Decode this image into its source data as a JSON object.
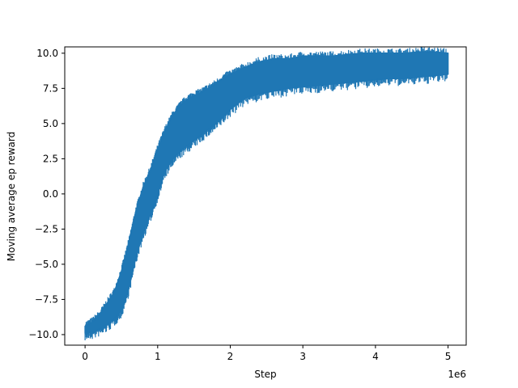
{
  "chart_data": {
    "type": "area",
    "xlabel": "Step",
    "ylabel": "Moving average ep reward",
    "x_offset_label": "1e6",
    "xlim": [
      -280000,
      5250000
    ],
    "ylim": [
      -10.75,
      10.45
    ],
    "x_ticks": [
      0,
      1000000,
      2000000,
      3000000,
      4000000,
      5000000
    ],
    "x_tick_labels": [
      "0",
      "1",
      "2",
      "3",
      "4",
      "5"
    ],
    "y_ticks": [
      -10.0,
      -7.5,
      -5.0,
      -2.5,
      0.0,
      2.5,
      5.0,
      7.5,
      10.0
    ],
    "y_tick_labels": [
      "−10.0",
      "−7.5",
      "−5.0",
      "−2.5",
      "0.0",
      "2.5",
      "5.0",
      "7.5",
      "10.0"
    ],
    "grid": false,
    "series": [
      {
        "color": "#1f77b4",
        "x": [
          0,
          100000,
          200000,
          300000,
          400000,
          500000,
          600000,
          700000,
          800000,
          900000,
          1000000,
          1100000,
          1200000,
          1300000,
          1400000,
          1500000,
          1600000,
          1700000,
          1800000,
          1900000,
          2000000,
          2200000,
          2400000,
          2600000,
          2800000,
          3000000,
          3200000,
          3400000,
          3600000,
          3800000,
          4000000,
          4200000,
          4400000,
          4600000,
          4800000,
          5000000
        ],
        "upper": [
          -9.4,
          -9.1,
          -8.6,
          -7.8,
          -7.0,
          -5.5,
          -3.5,
          -1.2,
          0.5,
          1.7,
          3.2,
          4.5,
          5.5,
          6.2,
          6.7,
          7.0,
          7.2,
          7.5,
          7.8,
          8.2,
          8.5,
          9.0,
          9.4,
          9.6,
          9.6,
          9.8,
          9.8,
          9.8,
          9.9,
          10.0,
          10.0,
          10.0,
          10.0,
          10.1,
          10.1,
          10.0
        ],
        "lower": [
          -9.9,
          -9.8,
          -9.6,
          -9.3,
          -8.9,
          -8.3,
          -6.8,
          -4.5,
          -2.8,
          -1.5,
          0.0,
          1.6,
          2.4,
          3.0,
          3.4,
          3.8,
          4.2,
          4.6,
          5.0,
          5.5,
          6.0,
          6.8,
          7.1,
          7.3,
          7.5,
          7.6,
          7.7,
          7.8,
          7.9,
          8.0,
          8.1,
          8.2,
          8.2,
          8.3,
          8.4,
          8.5
        ]
      }
    ]
  }
}
